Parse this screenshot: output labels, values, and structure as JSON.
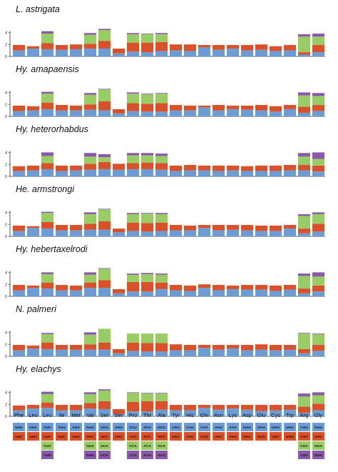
{
  "colors": {
    "blue": "#6d9bd4",
    "red": "#d9512b",
    "green": "#99cc66",
    "purple": "#8a5aa8",
    "axis": "#333333"
  },
  "chart_data": {
    "type": "bar",
    "stacked": true,
    "categories": [
      "Phe",
      "Leu",
      "Leu",
      "Ile",
      "Met",
      "Val",
      "Ser",
      "Ser",
      "Pro",
      "Thr",
      "Ala",
      "Tyr",
      "His",
      "Gln",
      "Asn",
      "Lys",
      "Asp",
      "Glu",
      "Cys",
      "Trp",
      "Arg",
      "Gly"
    ],
    "ylim": [
      0,
      4
    ],
    "yticks": [
      0,
      2,
      4
    ],
    "species": [
      {
        "name": "L. astrigata",
        "stacks": [
          [
            1.0,
            0.9
          ],
          [
            1.3,
            0.4
          ],
          [
            1.2,
            1.0,
            1.6,
            0.4
          ],
          [
            1.1,
            0.8
          ],
          [
            1.2,
            0.8
          ],
          [
            1.3,
            0.8,
            1.5,
            0.3
          ],
          [
            1.3,
            1.3,
            1.8,
            0.2
          ],
          [
            0.5,
            0.8
          ],
          [
            0.8,
            1.5,
            1.4,
            0.2
          ],
          [
            0.7,
            1.6,
            1.4,
            0.1
          ],
          [
            0.9,
            1.5,
            1.3,
            0.2
          ],
          [
            1.0,
            1.0
          ],
          [
            0.9,
            1.1
          ],
          [
            1.5,
            0.4
          ],
          [
            1.1,
            0.8
          ],
          [
            1.3,
            0.6
          ],
          [
            1.0,
            0.9
          ],
          [
            1.1,
            0.9
          ],
          [
            0.9,
            0.8
          ],
          [
            1.0,
            0.9
          ],
          [
            0.3,
            0.4,
            2.6,
            0.4
          ],
          [
            0.7,
            1.2,
            1.4,
            0.5
          ]
        ]
      },
      {
        "name": "Hy. amapaensis",
        "stacks": [
          [
            0.9,
            0.9
          ],
          [
            1.0,
            0.7
          ],
          [
            1.2,
            1.1,
            1.5,
            0.3
          ],
          [
            1.0,
            0.9
          ],
          [
            1.0,
            0.8
          ],
          [
            1.1,
            0.9,
            1.6,
            0.3
          ],
          [
            1.0,
            1.5,
            2.0,
            0.1
          ],
          [
            0.5,
            0.7
          ],
          [
            0.9,
            1.3,
            1.6,
            0.2
          ],
          [
            0.8,
            1.3,
            1.6,
            0.1
          ],
          [
            0.8,
            1.4,
            1.6,
            0.1
          ],
          [
            1.0,
            0.9
          ],
          [
            1.0,
            0.8
          ],
          [
            1.5,
            0.3
          ],
          [
            1.0,
            0.9
          ],
          [
            1.2,
            0.6
          ],
          [
            1.1,
            0.7
          ],
          [
            1.0,
            0.9
          ],
          [
            0.8,
            0.9
          ],
          [
            1.2,
            0.7
          ],
          [
            0.6,
            1.0,
            1.9,
            0.5
          ],
          [
            0.9,
            1.0,
            1.5,
            0.5
          ]
        ]
      },
      {
        "name": "Hy. heterorhabdus",
        "stacks": [
          [
            0.9,
            0.8
          ],
          [
            1.0,
            0.8
          ],
          [
            1.2,
            1.0,
            1.2,
            0.6
          ],
          [
            0.9,
            0.9
          ],
          [
            1.0,
            0.8
          ],
          [
            1.1,
            1.0,
            1.2,
            0.6
          ],
          [
            1.2,
            1.2,
            0.8,
            0.5
          ],
          [
            1.1,
            1.0
          ],
          [
            1.2,
            1.0,
            1.3,
            0.4
          ],
          [
            1.2,
            1.1,
            1.2,
            0.4
          ],
          [
            1.1,
            1.1,
            1.2,
            0.4
          ],
          [
            0.9,
            0.9
          ],
          [
            1.0,
            0.9
          ],
          [
            1.0,
            0.8
          ],
          [
            0.9,
            0.9
          ],
          [
            1.0,
            0.8
          ],
          [
            0.9,
            0.8
          ],
          [
            0.9,
            0.9
          ],
          [
            0.9,
            0.9
          ],
          [
            1.0,
            0.9
          ],
          [
            1.0,
            0.9,
            1.4,
            0.6
          ],
          [
            0.8,
            1.0,
            1.1,
            1.1
          ]
        ]
      },
      {
        "name": "He. armstrongi",
        "stacks": [
          [
            0.9,
            0.9
          ],
          [
            1.4,
            0.3
          ],
          [
            1.3,
            1.1,
            1.5,
            0.2
          ],
          [
            1.0,
            0.9
          ],
          [
            1.0,
            0.9
          ],
          [
            1.1,
            1.0,
            1.6,
            0.3
          ],
          [
            1.1,
            1.4,
            2.0,
            0.1
          ],
          [
            0.7,
            0.6
          ],
          [
            0.9,
            1.4,
            1.4,
            0.2
          ],
          [
            0.8,
            1.4,
            1.6,
            0.1
          ],
          [
            0.9,
            1.4,
            1.4,
            0.2
          ],
          [
            1.0,
            0.9
          ],
          [
            1.0,
            0.8
          ],
          [
            1.4,
            0.5
          ],
          [
            1.0,
            0.9
          ],
          [
            1.1,
            0.8
          ],
          [
            1.0,
            0.9
          ],
          [
            0.9,
            0.9
          ],
          [
            0.9,
            0.9
          ],
          [
            1.3,
            0.6
          ],
          [
            0.5,
            0.8,
            2.1,
            0.3
          ],
          [
            0.8,
            1.3,
            1.6,
            0.3
          ]
        ]
      },
      {
        "name": "Hy. hebertaxelrodi",
        "stacks": [
          [
            1.0,
            0.9
          ],
          [
            1.4,
            0.4
          ],
          [
            1.3,
            1.0,
            1.4,
            0.3
          ],
          [
            1.0,
            0.9
          ],
          [
            1.0,
            0.8
          ],
          [
            1.4,
            0.9,
            1.3,
            0.4
          ],
          [
            1.4,
            1.3,
            1.9,
            0.1
          ],
          [
            0.5,
            0.7
          ],
          [
            0.8,
            1.6,
            1.2,
            0.2
          ],
          [
            0.8,
            1.6,
            1.3,
            0.2
          ],
          [
            1.2,
            1.1,
            1.3,
            0.2
          ],
          [
            1.0,
            0.9
          ],
          [
            0.9,
            0.9
          ],
          [
            1.4,
            0.6
          ],
          [
            1.0,
            0.9
          ],
          [
            1.2,
            0.6
          ],
          [
            1.1,
            0.8
          ],
          [
            1.1,
            0.8
          ],
          [
            0.9,
            0.9
          ],
          [
            1.1,
            0.8
          ],
          [
            0.5,
            0.8,
            2.1,
            0.4
          ],
          [
            0.8,
            1.0,
            1.5,
            0.7
          ]
        ]
      },
      {
        "name": "N. palmeri",
        "stacks": [
          [
            1.0,
            0.9
          ],
          [
            1.3,
            0.5
          ],
          [
            1.2,
            1.1,
            1.4,
            0.2
          ],
          [
            1.1,
            0.8
          ],
          [
            1.1,
            0.8
          ],
          [
            1.1,
            0.9,
            1.6,
            0.4
          ],
          [
            1.1,
            1.2,
            2.3,
            0.0
          ],
          [
            0.5,
            0.7
          ],
          [
            0.9,
            1.4,
            1.5,
            0.0
          ],
          [
            0.8,
            1.4,
            1.6,
            0.0
          ],
          [
            0.8,
            1.4,
            1.6,
            0.0
          ],
          [
            1.0,
            1.0
          ],
          [
            1.0,
            0.9
          ],
          [
            1.4,
            0.5
          ],
          [
            1.1,
            0.8
          ],
          [
            1.3,
            0.6
          ],
          [
            1.0,
            0.9
          ],
          [
            1.1,
            0.9
          ],
          [
            1.0,
            0.9
          ],
          [
            1.1,
            0.8
          ],
          [
            0.5,
            0.7,
            2.6,
            0.1
          ],
          [
            0.9,
            1.0,
            1.8,
            0.1
          ]
        ]
      },
      {
        "name": "Hy. elachys",
        "stacks": [
          [
            1.0,
            0.8
          ],
          [
            1.3,
            0.6
          ],
          [
            1.4,
            0.9,
            1.4,
            0.4
          ],
          [
            1.0,
            0.9
          ],
          [
            1.0,
            0.9
          ],
          [
            1.3,
            0.9,
            1.5,
            0.3
          ],
          [
            1.2,
            1.3,
            1.8,
            0.2
          ],
          [
            0.4,
            0.8
          ],
          [
            0.8,
            1.6,
            1.5,
            0.1
          ],
          [
            0.8,
            1.7,
            1.3,
            0.1
          ],
          [
            1.1,
            1.4,
            1.3,
            0.1
          ],
          [
            1.0,
            0.9
          ],
          [
            1.0,
            0.9
          ],
          [
            1.4,
            0.5
          ],
          [
            1.1,
            0.8
          ],
          [
            1.3,
            0.6
          ],
          [
            1.1,
            0.8
          ],
          [
            0.9,
            1.0
          ],
          [
            1.0,
            0.9
          ],
          [
            1.1,
            0.8
          ],
          [
            0.6,
            1.0,
            1.7,
            0.5
          ],
          [
            1.0,
            1.1,
            1.4,
            0.5
          ]
        ]
      }
    ],
    "codons": [
      [
        "UUU",
        "UUC"
      ],
      [
        "UUA",
        "UUG"
      ],
      [
        "CUU",
        "CUC",
        "CUA",
        "CUG"
      ],
      [
        "AUU",
        "AUC"
      ],
      [
        "AUA",
        "AUG"
      ],
      [
        "GUU",
        "GUC",
        "GUA",
        "GUG"
      ],
      [
        "UCU",
        "UCC",
        "UCA",
        "UCG"
      ],
      [
        "AGU",
        "AGC"
      ],
      [
        "CCU",
        "CCC",
        "CCA",
        "CCG"
      ],
      [
        "ACU",
        "ACC",
        "ACA",
        "ACG"
      ],
      [
        "GCU",
        "GCC",
        "GCA",
        "GCG"
      ],
      [
        "UAU",
        "UAC"
      ],
      [
        "CAU",
        "CAC"
      ],
      [
        "CAA",
        "CAG"
      ],
      [
        "AAU",
        "AAC"
      ],
      [
        "AAA",
        "AAG"
      ],
      [
        "GAU",
        "GAC"
      ],
      [
        "GAA",
        "GAG"
      ],
      [
        "UGU",
        "UGC"
      ],
      [
        "UGA",
        "UGG"
      ],
      [
        "CGU",
        "CGC",
        "CGA",
        "CGG"
      ],
      [
        "GGU",
        "GGC",
        "GGA",
        "GGG"
      ]
    ]
  }
}
